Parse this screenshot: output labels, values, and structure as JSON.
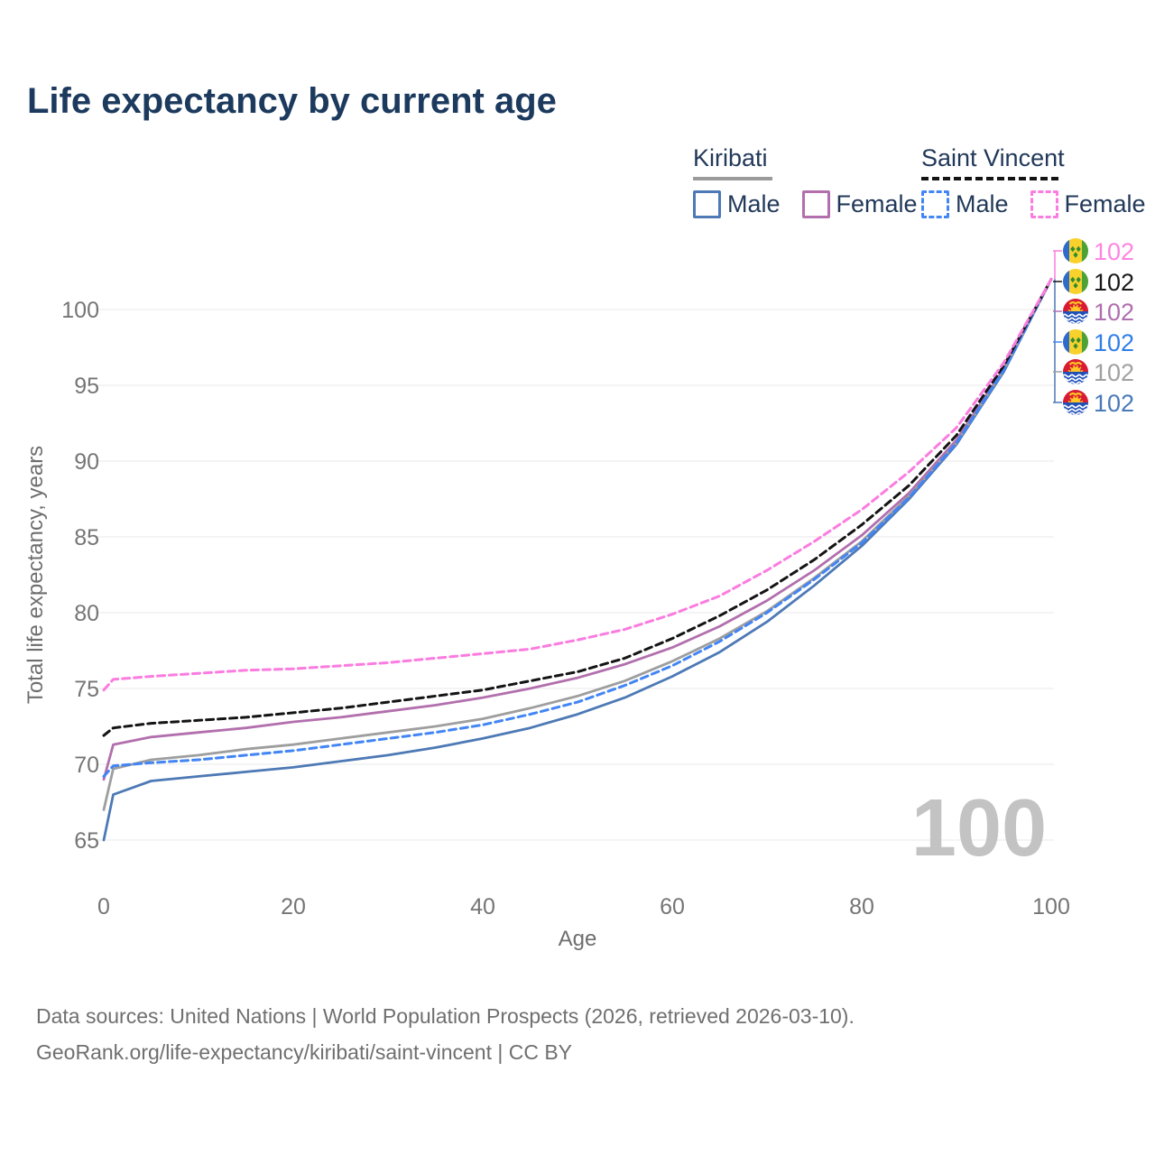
{
  "title": "Life expectancy by current age",
  "legend": {
    "groups": [
      {
        "name": "Kiribati",
        "line_style": "solid",
        "underline_color": "#9a9a9a",
        "items": [
          {
            "label": "Male",
            "color": "#4d79b5",
            "dash": false
          },
          {
            "label": "Female",
            "color": "#b26fad",
            "dash": false
          }
        ]
      },
      {
        "name": "Saint Vincent",
        "line_style": "dashed",
        "underline_color": "#141414",
        "items": [
          {
            "label": "Male",
            "color": "#4285f4",
            "dash": true
          },
          {
            "label": "Female",
            "color": "#fb7ce0",
            "dash": true
          }
        ]
      }
    ]
  },
  "footer": {
    "line1": "Data sources: United Nations | World Population Prospects (2026, retrieved 2026-03-10).",
    "line2": "GeoRank.org/life-expectancy/kiribati/saint-vincent | CC BY"
  },
  "chart_data": {
    "type": "line",
    "title": "Life expectancy by current age",
    "xlabel": "Age",
    "ylabel": "Total life expectancy, years",
    "x_ticks": [
      0,
      20,
      40,
      60,
      80,
      100
    ],
    "y_ticks": [
      65,
      70,
      75,
      80,
      85,
      90,
      95,
      100
    ],
    "xlim": [
      0,
      100
    ],
    "ylim": [
      63.5,
      103
    ],
    "grid": "horizontal",
    "legend_position": "top-right",
    "hover_age_label": "100",
    "series": [
      {
        "id": "kiribati-male",
        "name": "Kiribati Male",
        "country": "Kiribati",
        "sex": "Male",
        "color": "#4d79b5",
        "label_color": "#4a7ab8",
        "dash": false,
        "flag": "kiribati",
        "end_label": "102",
        "end_row": 5,
        "points": [
          [
            0,
            65.0
          ],
          [
            1,
            68.0
          ],
          [
            5,
            68.9
          ],
          [
            10,
            69.2
          ],
          [
            15,
            69.5
          ],
          [
            20,
            69.8
          ],
          [
            25,
            70.2
          ],
          [
            30,
            70.6
          ],
          [
            35,
            71.1
          ],
          [
            40,
            71.7
          ],
          [
            45,
            72.4
          ],
          [
            50,
            73.3
          ],
          [
            55,
            74.4
          ],
          [
            60,
            75.8
          ],
          [
            65,
            77.4
          ],
          [
            70,
            79.4
          ],
          [
            75,
            81.8
          ],
          [
            80,
            84.4
          ],
          [
            85,
            87.5
          ],
          [
            90,
            91.1
          ],
          [
            95,
            95.9
          ],
          [
            100,
            102
          ]
        ]
      },
      {
        "id": "kiribati-female",
        "name": "Kiribati Female",
        "country": "Kiribati",
        "sex": "Female",
        "color": "#b26fad",
        "label_color": "#b06fae",
        "dash": false,
        "flag": "kiribati",
        "end_label": "102",
        "end_row": 2,
        "points": [
          [
            0,
            69.0
          ],
          [
            1,
            71.3
          ],
          [
            5,
            71.8
          ],
          [
            10,
            72.1
          ],
          [
            15,
            72.4
          ],
          [
            20,
            72.8
          ],
          [
            25,
            73.1
          ],
          [
            30,
            73.5
          ],
          [
            35,
            73.9
          ],
          [
            40,
            74.4
          ],
          [
            45,
            75.0
          ],
          [
            50,
            75.7
          ],
          [
            55,
            76.6
          ],
          [
            60,
            77.7
          ],
          [
            65,
            79.1
          ],
          [
            70,
            80.8
          ],
          [
            75,
            82.8
          ],
          [
            80,
            85.1
          ],
          [
            85,
            87.9
          ],
          [
            90,
            91.4
          ],
          [
            95,
            96.1
          ],
          [
            100,
            102
          ]
        ]
      },
      {
        "id": "kiribati-total",
        "name": "Kiribati Total",
        "country": "Kiribati",
        "sex": "Both",
        "color": "#9e9e9e",
        "label_color": "#a1a1a1",
        "dash": false,
        "flag": "kiribati",
        "end_label": "102",
        "end_row": 4,
        "points": [
          [
            0,
            67.0
          ],
          [
            1,
            69.7
          ],
          [
            5,
            70.3
          ],
          [
            10,
            70.6
          ],
          [
            15,
            71.0
          ],
          [
            20,
            71.3
          ],
          [
            25,
            71.7
          ],
          [
            30,
            72.1
          ],
          [
            35,
            72.5
          ],
          [
            40,
            73.0
          ],
          [
            45,
            73.7
          ],
          [
            50,
            74.5
          ],
          [
            55,
            75.5
          ],
          [
            60,
            76.8
          ],
          [
            65,
            78.3
          ],
          [
            70,
            80.1
          ],
          [
            75,
            82.3
          ],
          [
            80,
            84.7
          ],
          [
            85,
            87.7
          ],
          [
            90,
            91.2
          ],
          [
            95,
            96.0
          ],
          [
            100,
            102
          ]
        ]
      },
      {
        "id": "saint-vincent-male",
        "name": "Saint Vincent Male",
        "country": "Saint Vincent",
        "sex": "Male",
        "color": "#4285f4",
        "label_color": "#2f7fe8",
        "dash": true,
        "flag": "saint-vincent",
        "end_label": "102",
        "end_row": 3,
        "points": [
          [
            0,
            69.2
          ],
          [
            1,
            69.9
          ],
          [
            5,
            70.1
          ],
          [
            10,
            70.3
          ],
          [
            15,
            70.6
          ],
          [
            20,
            70.9
          ],
          [
            25,
            71.3
          ],
          [
            30,
            71.7
          ],
          [
            35,
            72.1
          ],
          [
            40,
            72.6
          ],
          [
            45,
            73.3
          ],
          [
            50,
            74.1
          ],
          [
            55,
            75.2
          ],
          [
            60,
            76.5
          ],
          [
            65,
            78.1
          ],
          [
            70,
            80.0
          ],
          [
            75,
            82.2
          ],
          [
            80,
            84.6
          ],
          [
            85,
            87.6
          ],
          [
            90,
            91.2
          ],
          [
            95,
            96.0
          ],
          [
            100,
            102
          ]
        ]
      },
      {
        "id": "saint-vincent-total",
        "name": "Saint Vincent Total",
        "country": "Saint Vincent",
        "sex": "Both",
        "color": "#141414",
        "label_color": "#1a1a1a",
        "dash": true,
        "flag": "saint-vincent",
        "end_label": "102",
        "end_row": 1,
        "points": [
          [
            0,
            71.9
          ],
          [
            1,
            72.4
          ],
          [
            5,
            72.7
          ],
          [
            10,
            72.9
          ],
          [
            15,
            73.1
          ],
          [
            20,
            73.4
          ],
          [
            25,
            73.7
          ],
          [
            30,
            74.1
          ],
          [
            35,
            74.5
          ],
          [
            40,
            74.9
          ],
          [
            45,
            75.5
          ],
          [
            50,
            76.1
          ],
          [
            55,
            77.0
          ],
          [
            60,
            78.3
          ],
          [
            65,
            79.8
          ],
          [
            70,
            81.5
          ],
          [
            75,
            83.5
          ],
          [
            80,
            85.8
          ],
          [
            85,
            88.4
          ],
          [
            90,
            91.7
          ],
          [
            95,
            96.3
          ],
          [
            100,
            102
          ]
        ]
      },
      {
        "id": "saint-vincent-female",
        "name": "Saint Vincent Female",
        "country": "Saint Vincent",
        "sex": "Female",
        "color": "#fb7ce0",
        "label_color": "#ff85e2",
        "dash": true,
        "flag": "saint-vincent",
        "end_label": "102",
        "end_row": 0,
        "points": [
          [
            0,
            74.9
          ],
          [
            1,
            75.6
          ],
          [
            5,
            75.8
          ],
          [
            10,
            76.0
          ],
          [
            15,
            76.2
          ],
          [
            20,
            76.3
          ],
          [
            25,
            76.5
          ],
          [
            30,
            76.7
          ],
          [
            35,
            77.0
          ],
          [
            40,
            77.3
          ],
          [
            45,
            77.6
          ],
          [
            50,
            78.2
          ],
          [
            55,
            78.9
          ],
          [
            60,
            79.9
          ],
          [
            65,
            81.1
          ],
          [
            70,
            82.8
          ],
          [
            75,
            84.7
          ],
          [
            80,
            86.8
          ],
          [
            85,
            89.3
          ],
          [
            90,
            92.2
          ],
          [
            95,
            96.5
          ],
          [
            100,
            102
          ]
        ]
      }
    ]
  }
}
